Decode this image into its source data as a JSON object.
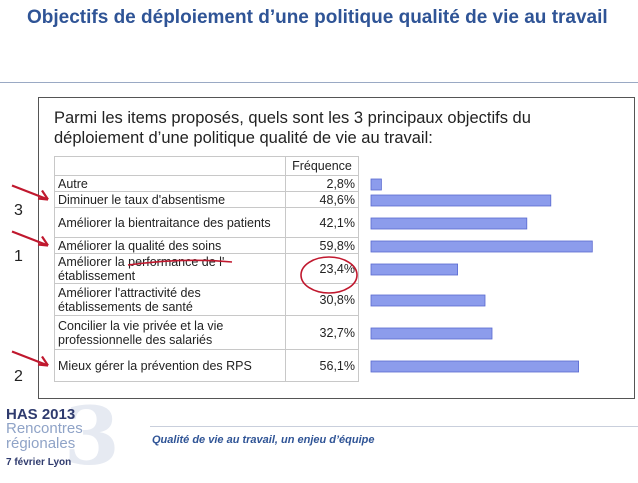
{
  "slide": {
    "title": "Objectifs de déploiement d’une politique qualité de vie au travail",
    "footer": "Qualité de vie au travail, un enjeu d’équipe"
  },
  "logo": {
    "org": "HAS",
    "year": "2013",
    "line1": "Rencontres",
    "line2": "régionales",
    "date": "7 février",
    "city": "Lyon",
    "big": "3"
  },
  "chart_data": {
    "type": "bar",
    "orientation": "horizontal",
    "title": "Parmi les items proposés, quels sont les 3 principaux objectifs du déploiement d’une politique qualité de vie au travail:",
    "column_header": "Fréquence",
    "categories": [
      "Autre",
      "Diminuer le taux d'absentisme",
      "Améliorer la bientraitance des patients",
      "Améliorer la qualité des soins",
      "Améliorer la performance de l' établissement",
      "Améliorer l'attractivité des établissements de santé",
      "Concilier la vie privée et la vie professionnelle des salariés",
      "Mieux gérer la prévention des RPS"
    ],
    "values": [
      2.8,
      48.6,
      42.1,
      59.8,
      23.4,
      30.8,
      32.7,
      56.1
    ],
    "labels": [
      "2,8%",
      "48,6%",
      "42,1%",
      "59,8%",
      "23,4%",
      "30,8%",
      "32,7%",
      "56,1%"
    ],
    "xlim": [
      0,
      60
    ],
    "bar_color": "#8c9cec",
    "grid": false
  },
  "annotations": {
    "ranks": [
      {
        "row": 1,
        "label": "3"
      },
      {
        "row": 3,
        "label": "1"
      },
      {
        "row": 7,
        "label": "2"
      }
    ],
    "arrow_color": "#c0182e"
  }
}
